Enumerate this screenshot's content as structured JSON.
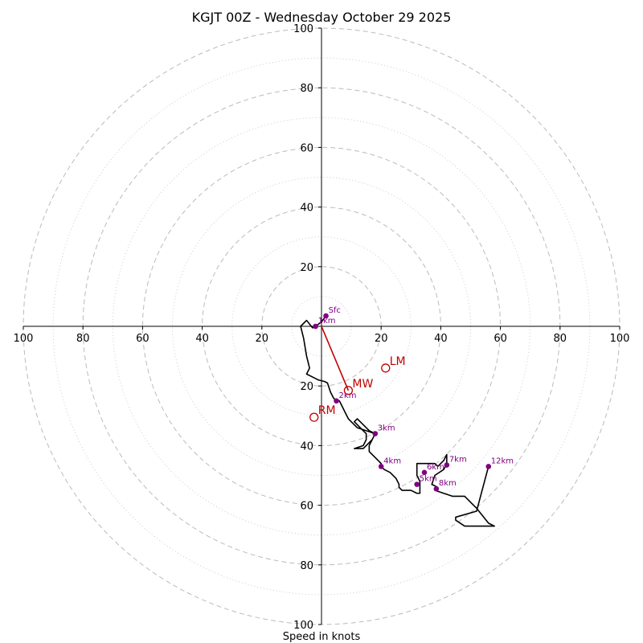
{
  "chart_data": {
    "type": "hodograph",
    "title": "KGJT 00Z - Wednesday October 29 2025",
    "xlabel": "Speed in knots",
    "range": 100,
    "ring_major": [
      20,
      40,
      60,
      80,
      100
    ],
    "ring_minor": [
      10,
      30,
      50,
      70,
      90
    ],
    "axis_ticks": [
      {
        "value": 100,
        "label": "100"
      },
      {
        "value": 80,
        "label": "80"
      },
      {
        "value": 60,
        "label": "60"
      },
      {
        "value": 40,
        "label": "40"
      },
      {
        "value": 20,
        "label": "20"
      }
    ],
    "trace": [
      [
        1.5,
        3.5
      ],
      [
        0,
        1.5
      ],
      [
        -2,
        0
      ],
      [
        -3,
        -0.5
      ],
      [
        -5,
        2
      ],
      [
        -7,
        0
      ],
      [
        -6,
        -4
      ],
      [
        -5,
        -10
      ],
      [
        -4,
        -14
      ],
      [
        -5,
        -16
      ],
      [
        -3,
        -17
      ],
      [
        -1,
        -18
      ],
      [
        1,
        -18.5
      ],
      [
        2,
        -19
      ],
      [
        3,
        -22
      ],
      [
        4,
        -24
      ],
      [
        5,
        -25
      ],
      [
        6,
        -25
      ],
      [
        7,
        -27
      ],
      [
        8,
        -29
      ],
      [
        9,
        -31
      ],
      [
        12,
        -34
      ],
      [
        15,
        -35
      ],
      [
        18,
        -36
      ],
      [
        17,
        -38
      ],
      [
        16,
        -39
      ],
      [
        14,
        -41
      ],
      [
        11,
        -41
      ],
      [
        14,
        -40
      ],
      [
        15,
        -38
      ],
      [
        15,
        -36
      ],
      [
        13,
        -34
      ],
      [
        11,
        -32
      ],
      [
        12,
        -31
      ],
      [
        14,
        -33
      ],
      [
        16,
        -35
      ],
      [
        18,
        -36
      ],
      [
        17,
        -38
      ],
      [
        16,
        -40
      ],
      [
        16,
        -42
      ],
      [
        18,
        -44
      ],
      [
        20,
        -46
      ],
      [
        20,
        -47
      ],
      [
        21,
        -48
      ],
      [
        23,
        -49
      ],
      [
        25,
        -51
      ],
      [
        26,
        -53
      ],
      [
        26,
        -54
      ],
      [
        27,
        -55
      ],
      [
        30,
        -55
      ],
      [
        32,
        -56
      ],
      [
        33,
        -56
      ],
      [
        33,
        -52
      ],
      [
        32,
        -50
      ],
      [
        32,
        -46
      ],
      [
        38,
        -46
      ],
      [
        39,
        -47
      ],
      [
        41,
        -45
      ],
      [
        42,
        -43
      ],
      [
        42,
        -46
      ],
      [
        41,
        -48
      ],
      [
        38,
        -50
      ],
      [
        37,
        -53
      ],
      [
        39,
        -54
      ],
      [
        38,
        -55
      ],
      [
        41,
        -56
      ],
      [
        44,
        -57
      ],
      [
        48,
        -57
      ],
      [
        52,
        -61
      ],
      [
        56,
        -66
      ],
      [
        58,
        -67
      ],
      [
        48,
        -67
      ],
      [
        45,
        -65
      ],
      [
        45,
        -64
      ],
      [
        52,
        -62
      ],
      [
        56,
        -47
      ]
    ],
    "heights": [
      {
        "label": "Sfc",
        "u": 1.5,
        "v": 3.5
      },
      {
        "label": "1km",
        "u": -2,
        "v": 0
      },
      {
        "label": "2km",
        "u": 5,
        "v": -25
      },
      {
        "label": "3km",
        "u": 18,
        "v": -36
      },
      {
        "label": "4km",
        "u": 20,
        "v": -47
      },
      {
        "label": "5km",
        "u": 32,
        "v": -53
      },
      {
        "label": "6km",
        "u": 34.5,
        "v": -49
      },
      {
        "label": "7km",
        "u": 42,
        "v": -46.5
      },
      {
        "label": "8km",
        "u": 38.5,
        "v": -54.5
      },
      {
        "label": "12km",
        "u": 56,
        "v": -47
      }
    ],
    "storm_motion": [
      {
        "label": "LM",
        "u": 21.5,
        "v": -14
      },
      {
        "label": "MW",
        "u": 9,
        "v": -21.5
      },
      {
        "label": "RM",
        "u": -2.5,
        "v": -30.5
      }
    ],
    "shear_vector": {
      "from": [
        0,
        0
      ],
      "to": [
        9,
        -21.5
      ]
    },
    "colors": {
      "trace": "#000000",
      "height_marker": "#800080",
      "storm_motion": "#c00000",
      "ring": "#bbbbbb"
    }
  }
}
